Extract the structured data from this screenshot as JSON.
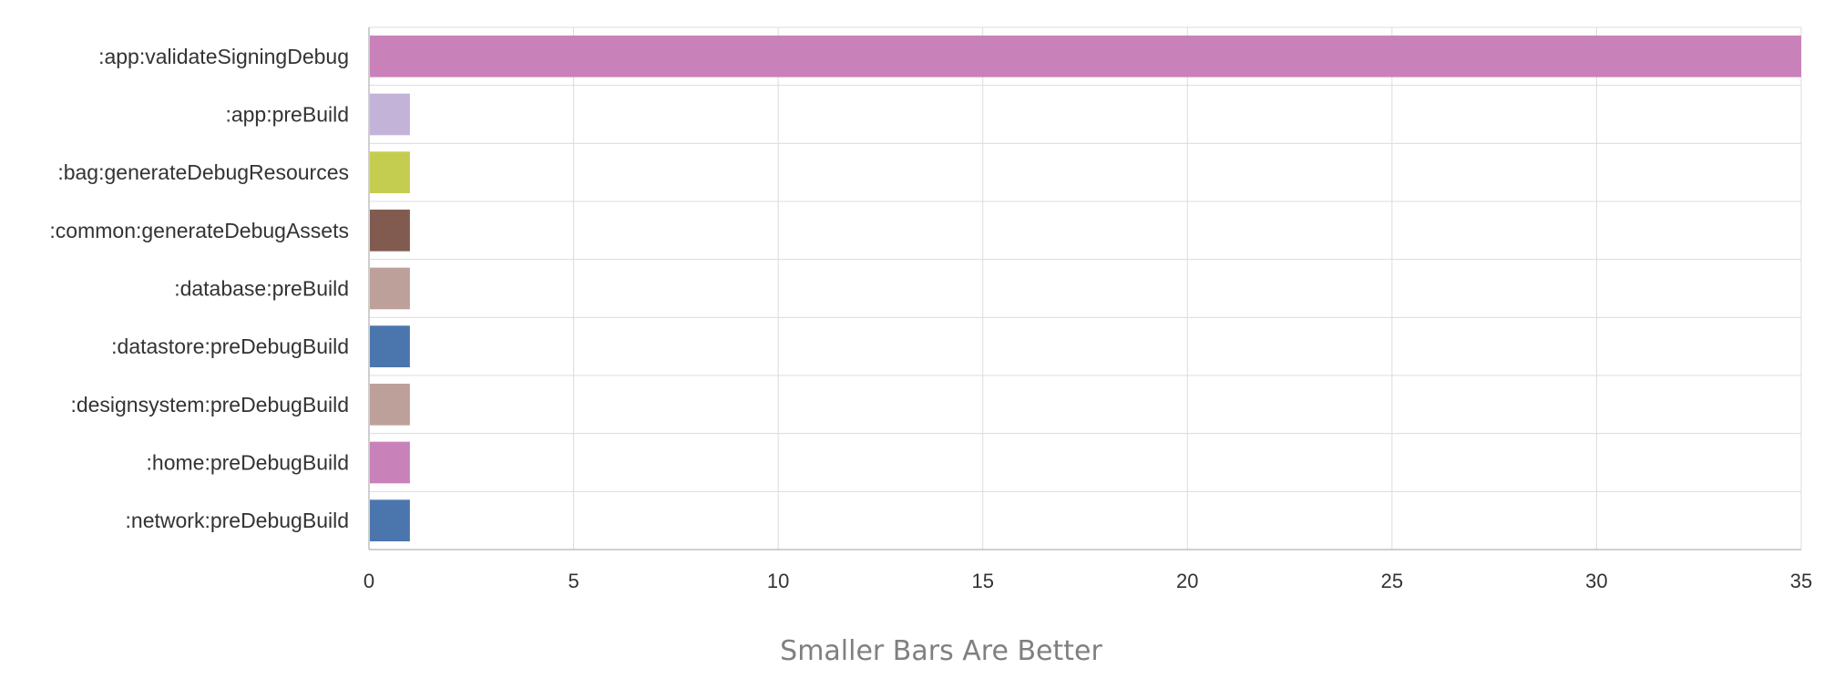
{
  "chart_data": {
    "type": "bar",
    "orientation": "horizontal",
    "categories": [
      ":app:validateSigningDebug",
      ":app:preBuild",
      ":bag:generateDebugResources",
      ":common:generateDebugAssets",
      ":database:preBuild",
      ":datastore:preDebugBuild",
      ":designsystem:preDebugBuild",
      ":home:preDebugBuild",
      ":network:preDebugBuild"
    ],
    "values": [
      35,
      1,
      1,
      1,
      1,
      1,
      1,
      1,
      1
    ],
    "colors": [
      "#c982b9",
      "#c3b3d8",
      "#c5cd50",
      "#815b50",
      "#bea09a",
      "#4a76ad",
      "#bea09a",
      "#c982b9",
      "#4a76ad"
    ],
    "xlim": [
      0,
      35
    ],
    "xticks": [
      0,
      5,
      10,
      15,
      20,
      25,
      30,
      35
    ],
    "xlabel": "Smaller Bars Are Better",
    "ylabel": "",
    "title": "",
    "grid": true,
    "legend": "none"
  },
  "style": {
    "grid_color": "#dcdcdc",
    "axis_color": "#bfbfbf"
  }
}
